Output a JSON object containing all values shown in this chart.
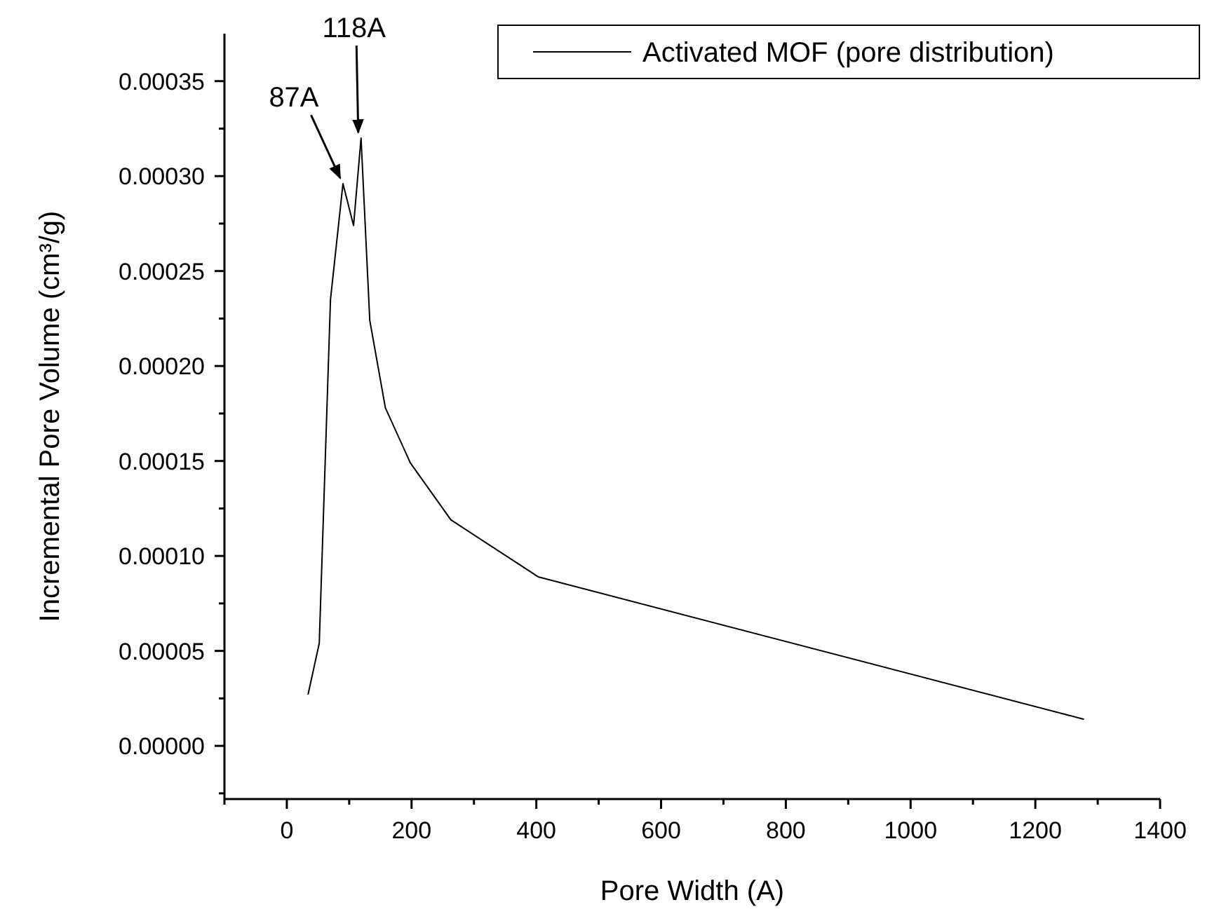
{
  "chart_data": {
    "type": "line",
    "xlabel": "Pore Width (A)",
    "ylabel": "Incremental Pore Volume (cm³/g)",
    "xlim": [
      -100,
      1400
    ],
    "ylim": [
      -2.8e-05,
      0.000375
    ],
    "xticks": [
      {
        "value": -100,
        "label": null
      },
      0,
      {
        "value": 100,
        "label": null
      },
      200,
      {
        "value": 300,
        "label": null
      },
      400,
      {
        "value": 500,
        "label": null
      },
      600,
      {
        "value": 700,
        "label": null
      },
      800,
      {
        "value": 900,
        "label": null
      },
      1000,
      {
        "value": 1100,
        "label": null
      },
      1200,
      {
        "value": 1300,
        "label": null
      },
      1400
    ],
    "yticks": [
      {
        "value": -2.5e-05,
        "label": null
      },
      {
        "value": 0,
        "label": "0.00000"
      },
      {
        "value": 2.5e-05,
        "label": null
      },
      {
        "value": 5e-05,
        "label": "0.00005"
      },
      {
        "value": 7.5e-05,
        "label": null
      },
      {
        "value": 0.0001,
        "label": "0.00010"
      },
      {
        "value": 0.000125,
        "label": null
      },
      {
        "value": 0.00015,
        "label": "0.00015"
      },
      {
        "value": 0.000175,
        "label": null
      },
      {
        "value": 0.0002,
        "label": "0.00020"
      },
      {
        "value": 0.000225,
        "label": null
      },
      {
        "value": 0.00025,
        "label": "0.00025"
      },
      {
        "value": 0.000275,
        "label": null
      },
      {
        "value": 0.0003,
        "label": "0.00030"
      },
      {
        "value": 0.000325,
        "label": null
      },
      {
        "value": 0.00035,
        "label": "0.00035"
      }
    ],
    "legend": "top right",
    "marker": "none",
    "line_style": "solid",
    "series": [
      {
        "name": "Activated MOF (pore distribution)",
        "color": "#000000",
        "x": [
          34,
          52,
          70,
          90,
          107,
          119,
          133,
          158,
          198,
          263,
          403,
          1278
        ],
        "values": [
          2.7e-05,
          5.4e-05,
          0.000235,
          0.000296,
          0.000274,
          0.00032,
          0.000224,
          0.000178,
          0.000149,
          0.000119,
          8.9e-05,
          1.4e-05
        ]
      }
    ],
    "annotations": [
      {
        "text": "87A",
        "x": 90,
        "y": 0.000296
      },
      {
        "text": "118A",
        "x": 119,
        "y": 0.00032
      }
    ]
  }
}
